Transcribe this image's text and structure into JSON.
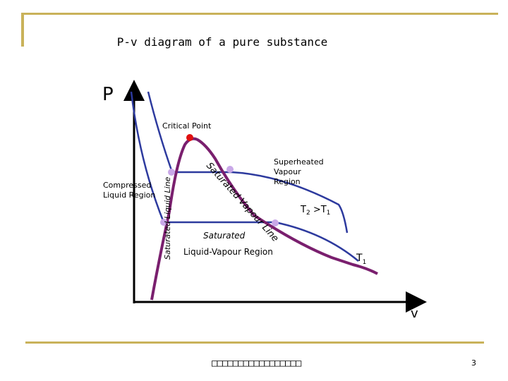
{
  "title": "P-v diagram of a pure substance",
  "axis": {
    "y_label": "P",
    "x_label": "v"
  },
  "labels": {
    "critical_point": "Critical Point",
    "saturated_liquid_line": "Saturated Liquid Line",
    "saturated_vapour_line": "Saturated Vapour Line",
    "compressed_region_line1": "Compressed",
    "compressed_region_line2": "Liquid Region",
    "superheated_line1": "Superheated",
    "superheated_line2": "Vapour",
    "superheated_line3": "Region",
    "saturated_region_line1": "Saturated",
    "saturated_region_line2": "Liquid-Vapour Region",
    "t2_text": "T",
    "t2_sub": "2",
    "t2_gt": " >T",
    "t2_sub2": "1",
    "t1_text": "T",
    "t1_sub": "1"
  },
  "colors": {
    "dome": "#7a1f6e",
    "isotherm": "#2d3a9e",
    "critical_point": "#e01010",
    "point": "#c9a8e8",
    "axis": "#000000",
    "decoration": "#c9b25a"
  },
  "footer": {
    "text": "□□□□□□□□□□□□□□□□□",
    "page_number": "3"
  }
}
